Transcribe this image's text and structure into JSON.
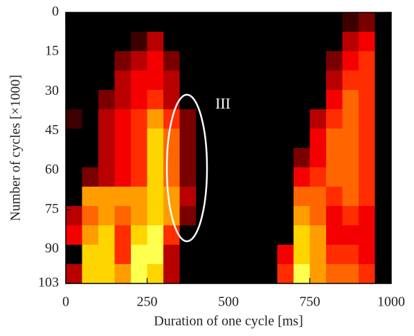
{
  "chart_data": {
    "type": "heatmap",
    "xlabel": "Duration of one cycle [ms]",
    "ylabel": "Number of cycles [×1000]",
    "annotation": "III",
    "colormap": "hot",
    "zlim": [
      0,
      10
    ],
    "xlim": [
      0,
      1000
    ],
    "xticks": [
      0,
      250,
      500,
      750,
      1000
    ],
    "ylim": [
      103,
      0
    ],
    "yticks": [
      0,
      15,
      30,
      45,
      60,
      75,
      90,
      103
    ],
    "z": [
      [
        0,
        0,
        0,
        0,
        0,
        0,
        0,
        0,
        0,
        0,
        0,
        0,
        0,
        0,
        0,
        0,
        0,
        1,
        2,
        0
      ],
      [
        0,
        0,
        0,
        0,
        1,
        3,
        0,
        0,
        0,
        0,
        0,
        0,
        0,
        0,
        0,
        0,
        0,
        3,
        4,
        0
      ],
      [
        0,
        0,
        0,
        2,
        3,
        4,
        2,
        0,
        0,
        0,
        0,
        0,
        0,
        0,
        0,
        0,
        2,
        4,
        5,
        0
      ],
      [
        0,
        0,
        0,
        3,
        4,
        4,
        3,
        0,
        0,
        0,
        0,
        0,
        0,
        0,
        0,
        0,
        3,
        5,
        5,
        0
      ],
      [
        0,
        0,
        2,
        3,
        4,
        5,
        3,
        0,
        0,
        0,
        0,
        0,
        0,
        0,
        0,
        0,
        4,
        6,
        5,
        0
      ],
      [
        1,
        0,
        3,
        4,
        5,
        7,
        5,
        2,
        0,
        0,
        0,
        0,
        0,
        0,
        0,
        3,
        5,
        6,
        5,
        0
      ],
      [
        0,
        0,
        3,
        4,
        5,
        8,
        6,
        2,
        0,
        0,
        0,
        0,
        0,
        0,
        0,
        4,
        6,
        6,
        5,
        0
      ],
      [
        0,
        0,
        3,
        4,
        5,
        8,
        6,
        2,
        0,
        0,
        0,
        0,
        0,
        0,
        2,
        4,
        6,
        6,
        5,
        0
      ],
      [
        0,
        2,
        3,
        4,
        5,
        8,
        6,
        2,
        0,
        0,
        0,
        0,
        0,
        0,
        4,
        5,
        6,
        6,
        5,
        0
      ],
      [
        0,
        7,
        7,
        7,
        7,
        8,
        7,
        3,
        0,
        0,
        0,
        0,
        0,
        0,
        6,
        6,
        5,
        6,
        5,
        0
      ],
      [
        3,
        6,
        7,
        6,
        7,
        8,
        7,
        2,
        0,
        0,
        0,
        0,
        0,
        0,
        7,
        6,
        4,
        5,
        4,
        0
      ],
      [
        4,
        7,
        8,
        5,
        8,
        9,
        5,
        0,
        0,
        0,
        0,
        0,
        0,
        0,
        8,
        7,
        4,
        4,
        4,
        0
      ],
      [
        0,
        8,
        8,
        5,
        9,
        9,
        3,
        0,
        0,
        0,
        0,
        0,
        0,
        4,
        8,
        7,
        5,
        5,
        4,
        0
      ],
      [
        3,
        8,
        8,
        7,
        9,
        8,
        3,
        0,
        0,
        0,
        0,
        0,
        0,
        5,
        9,
        7,
        6,
        6,
        5,
        0
      ]
    ]
  }
}
